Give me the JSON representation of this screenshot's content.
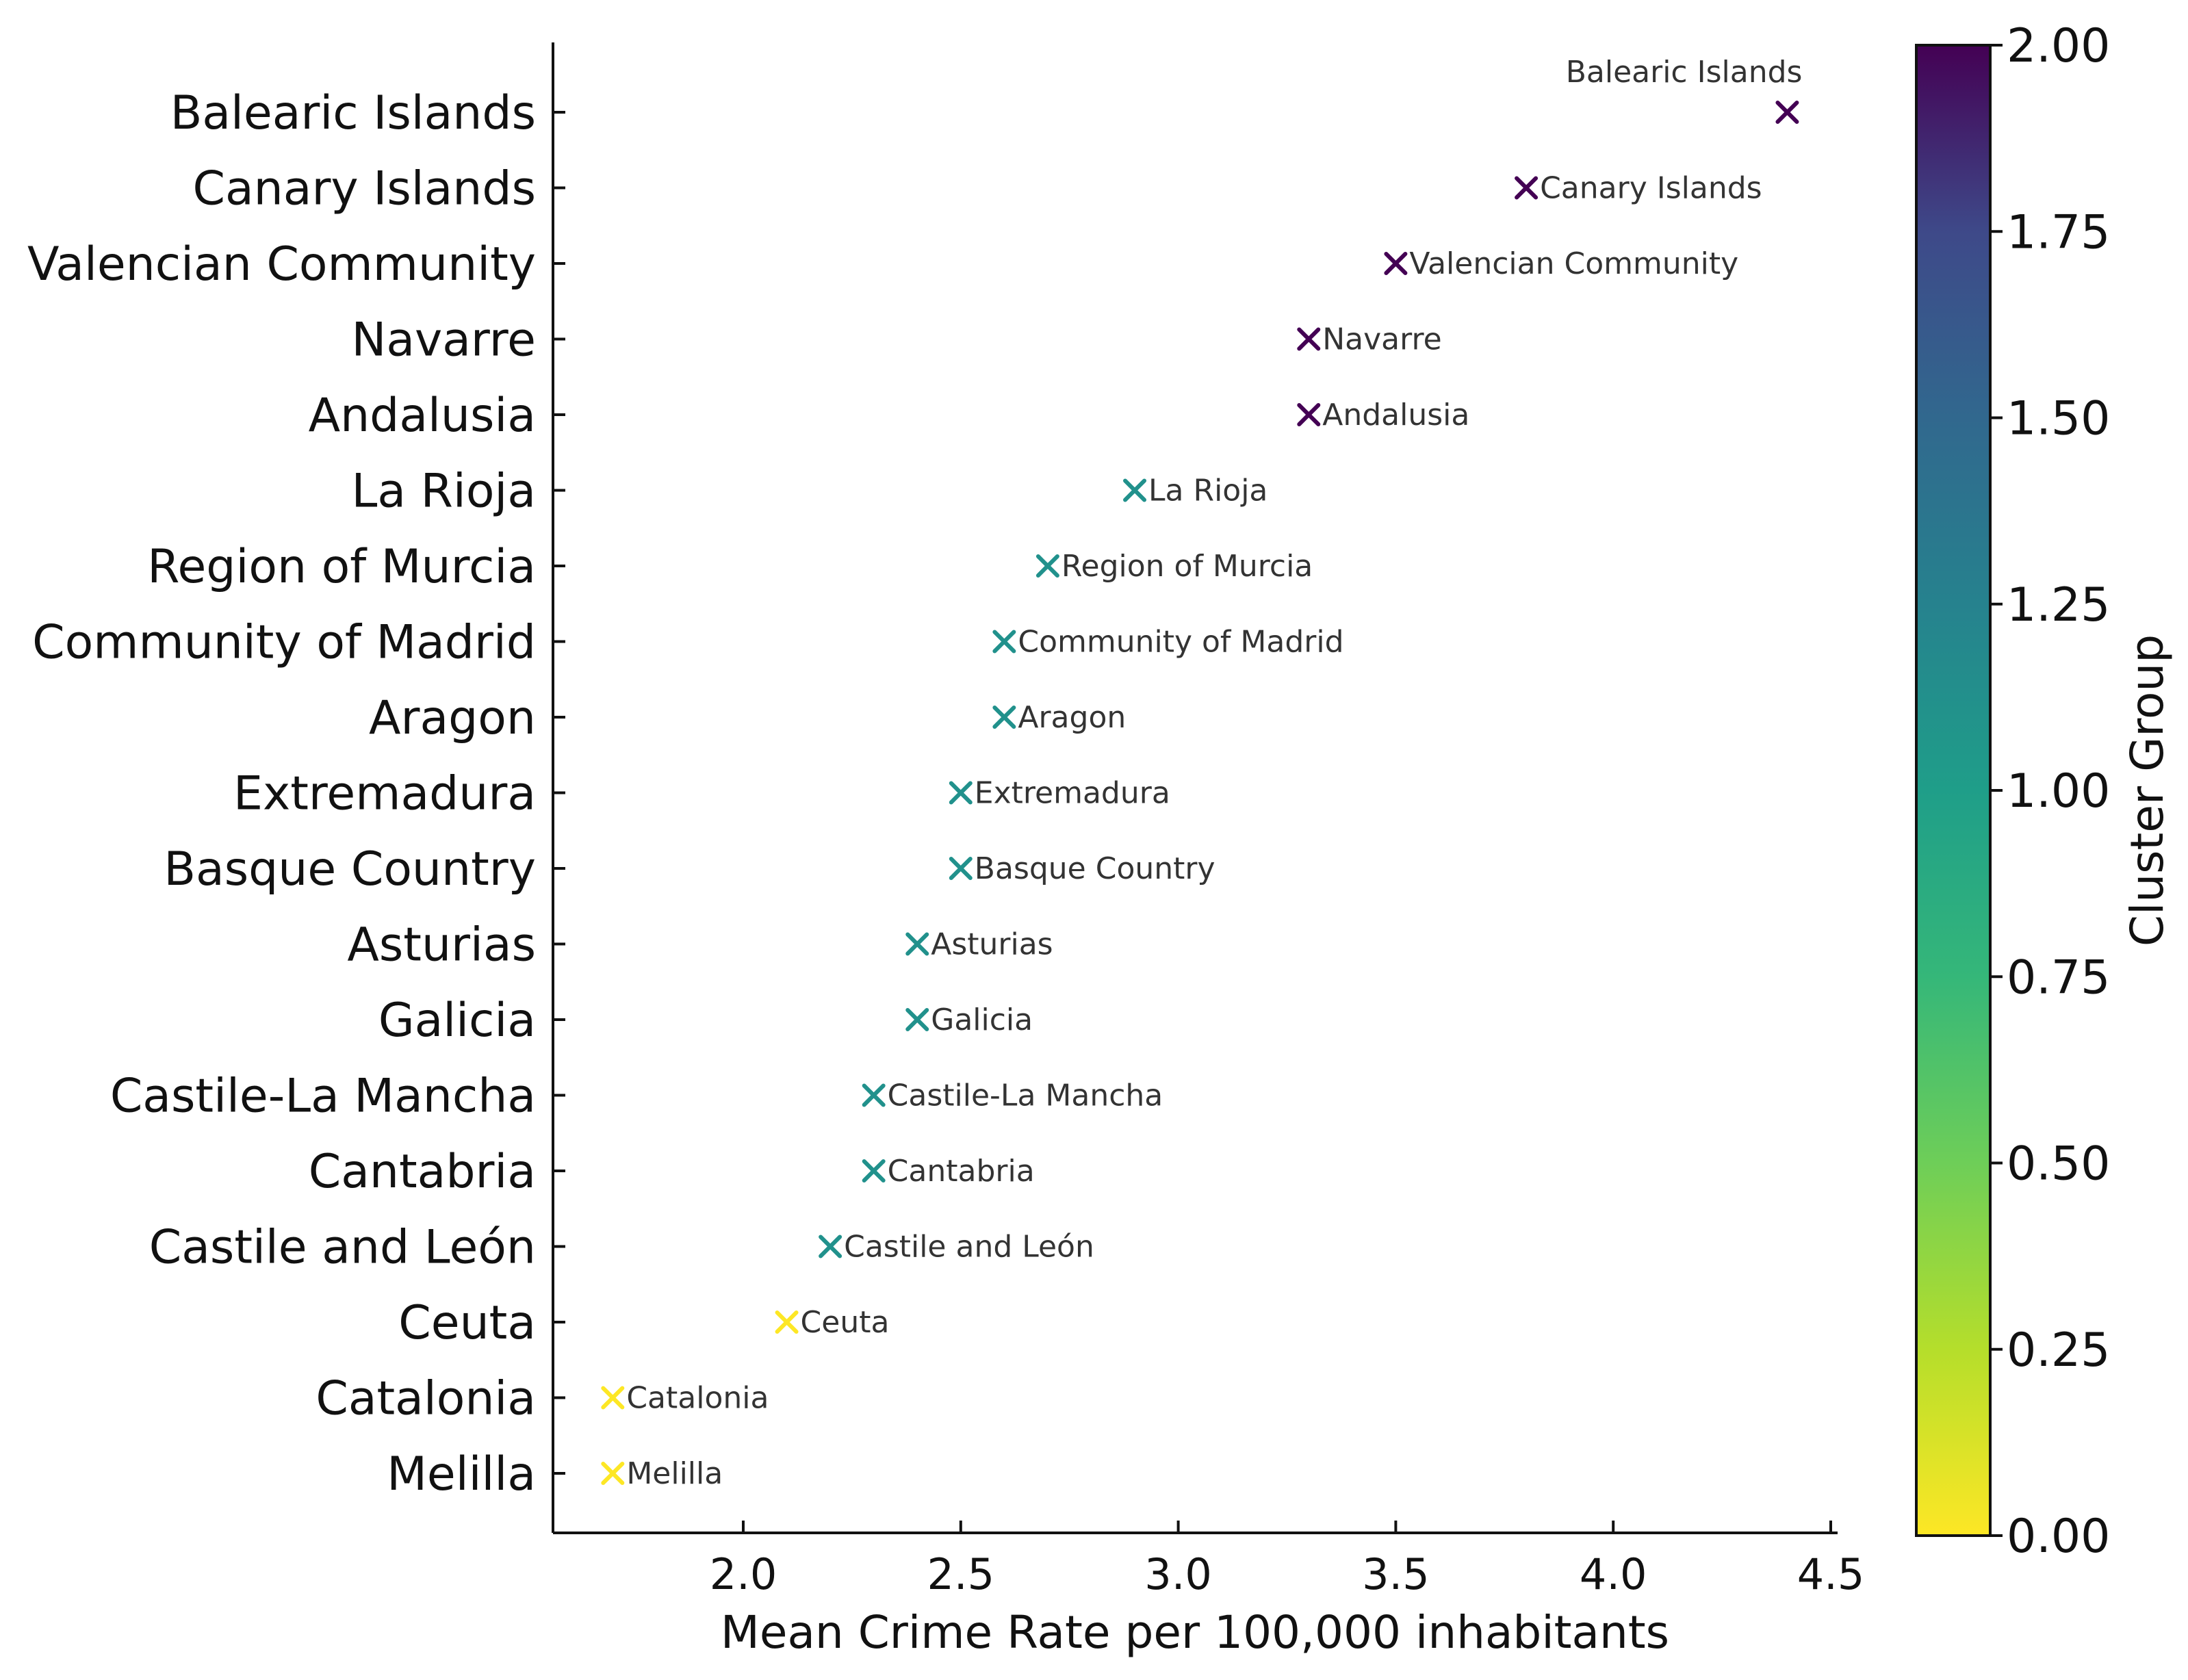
{
  "chart_data": {
    "type": "scatter",
    "title": "",
    "xlabel": "Mean Crime Rate per 100,000 inhabitants",
    "ylabel": "",
    "xlim": [
      1.6,
      4.55
    ],
    "xticks": [
      2.0,
      2.5,
      3.0,
      3.5,
      4.0,
      4.5
    ],
    "xtick_labels": [
      "2.0",
      "2.5",
      "3.0",
      "3.5",
      "4.0",
      "4.5"
    ],
    "marker": "x",
    "points": [
      {
        "region": "Balearic Islands",
        "x": 4.4,
        "cluster": 2
      },
      {
        "region": "Canary Islands",
        "x": 3.8,
        "cluster": 2
      },
      {
        "region": "Valencian Community",
        "x": 3.5,
        "cluster": 2
      },
      {
        "region": "Navarre",
        "x": 3.3,
        "cluster": 2
      },
      {
        "region": "Andalusia",
        "x": 3.3,
        "cluster": 2
      },
      {
        "region": "La Rioja",
        "x": 2.9,
        "cluster": 1
      },
      {
        "region": "Region of Murcia",
        "x": 2.7,
        "cluster": 1
      },
      {
        "region": "Community of Madrid",
        "x": 2.6,
        "cluster": 1
      },
      {
        "region": "Aragon",
        "x": 2.6,
        "cluster": 1
      },
      {
        "region": "Extremadura",
        "x": 2.5,
        "cluster": 1
      },
      {
        "region": "Basque Country",
        "x": 2.5,
        "cluster": 1
      },
      {
        "region": "Asturias",
        "x": 2.4,
        "cluster": 1
      },
      {
        "region": "Galicia",
        "x": 2.4,
        "cluster": 1
      },
      {
        "region": "Castile-La Mancha",
        "x": 2.3,
        "cluster": 1
      },
      {
        "region": "Cantabria",
        "x": 2.3,
        "cluster": 1
      },
      {
        "region": "Castile and León",
        "x": 2.2,
        "cluster": 1
      },
      {
        "region": "Ceuta",
        "x": 2.1,
        "cluster": 0
      },
      {
        "region": "Catalonia",
        "x": 1.7,
        "cluster": 0
      },
      {
        "region": "Melilla",
        "x": 1.7,
        "cluster": 0
      }
    ],
    "colorbar": {
      "label": "Cluster Group",
      "range": [
        0.0,
        2.0
      ],
      "ticks": [
        0.0,
        0.25,
        0.5,
        0.75,
        1.0,
        1.25,
        1.5,
        1.75,
        2.0
      ],
      "tick_labels": [
        "0.00",
        "0.25",
        "0.50",
        "0.75",
        "1.00",
        "1.25",
        "1.50",
        "1.75",
        "2.00"
      ],
      "colormap": "viridis_r"
    },
    "cluster_colors": {
      "0": "#fde725",
      "1": "#21918c",
      "2": "#440154"
    },
    "grid": false
  }
}
